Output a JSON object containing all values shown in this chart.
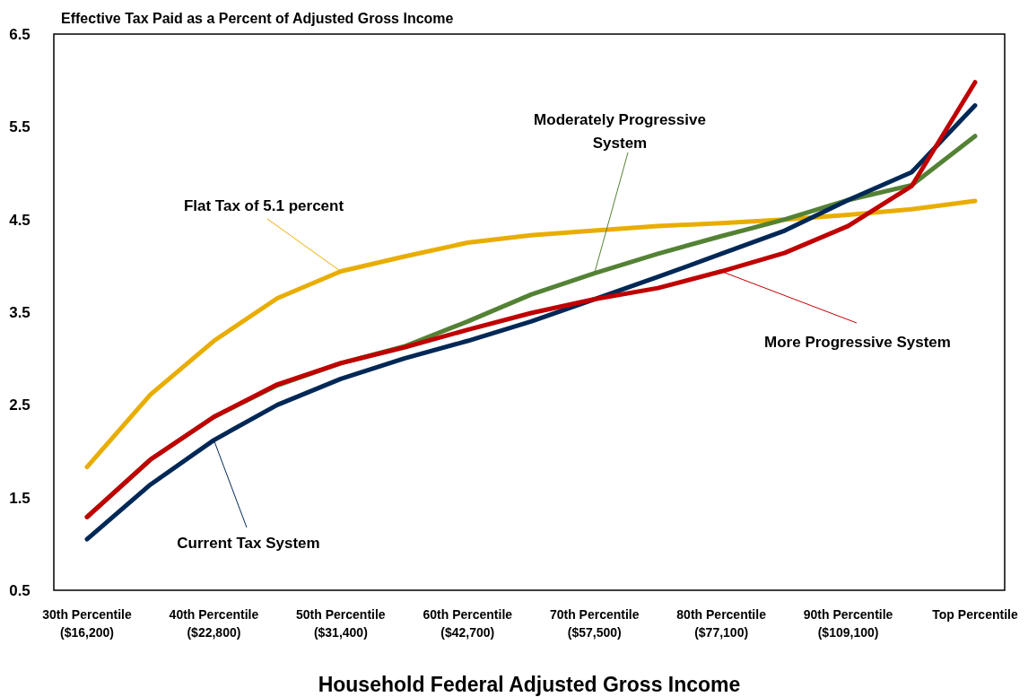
{
  "chart_data": {
    "type": "line",
    "title": "Effective Tax Paid as a Percent of Adjusted Gross Income",
    "xlabel": "Household Federal Adjusted Gross Income",
    "categories": [
      "30th Percentile\n($16,200)",
      null,
      "40th Percentile\n($22,800)",
      null,
      "50th Percentile\n($31,400)",
      null,
      "60th Percentile\n($42,700)",
      null,
      "70th Percentile\n($57,500)",
      null,
      "80th Percentile\n($77,100)",
      null,
      "90th Percentile\n($109,100)",
      null,
      "Top Percentile"
    ],
    "series": [
      {
        "color": "#e9ad00",
        "values": [
          1.83,
          2.61,
          3.19,
          3.65,
          3.94,
          4.1,
          4.25,
          4.33,
          4.38,
          4.43,
          4.46,
          4.5,
          4.55,
          4.61,
          4.7
        ]
      },
      {
        "color": "#548235",
        "values": [
          1.29,
          1.91,
          2.37,
          2.71,
          2.95,
          3.13,
          3.4,
          3.69,
          3.92,
          4.13,
          4.32,
          4.5,
          4.71,
          4.87,
          5.4
        ]
      },
      {
        "color": "#002856",
        "values": [
          1.05,
          1.64,
          2.12,
          2.5,
          2.78,
          3.0,
          3.19,
          3.4,
          3.64,
          3.88,
          4.13,
          4.38,
          4.71,
          5.01,
          5.73
        ]
      },
      {
        "color": "#c00000",
        "values": [
          1.29,
          1.91,
          2.37,
          2.72,
          2.95,
          3.12,
          3.31,
          3.49,
          3.64,
          3.76,
          3.94,
          4.14,
          4.43,
          4.86,
          5.98
        ]
      }
    ],
    "ylim": [
      0.5,
      6.5
    ],
    "yticks": [
      {
        "value": 0.5,
        "label": "0.5"
      },
      {
        "value": 1.5,
        "label": "1.5"
      },
      {
        "value": 2.5,
        "label": "2.5"
      },
      {
        "value": 3.5,
        "label": "3.5"
      },
      {
        "value": 4.5,
        "label": "4.5"
      },
      {
        "value": 5.5,
        "label": "5.5"
      },
      {
        "value": 6.5,
        "label": "6.5"
      }
    ],
    "annotations": [
      {
        "text": "Flat Tax of 5.1 percent",
        "x": "50th Percentile\n($31,400)",
        "y": 3.94
      },
      {
        "text": "Moderately Progressive System",
        "x": "70th Percentile\n($57,500)",
        "y": 3.92
      },
      {
        "text": "Current Tax System",
        "x": "40th Percentile\n($22,800)",
        "y": 2.12
      },
      {
        "text": "More Progressive System",
        "x": "80th Percentile\n($77,100)",
        "y": 3.94
      }
    ],
    "grid": false,
    "legend": false,
    "marker": "none",
    "line_style": "solid"
  }
}
